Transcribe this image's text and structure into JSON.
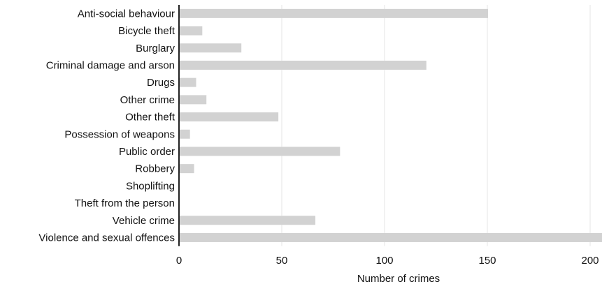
{
  "chart_data": {
    "type": "bar",
    "orientation": "horizontal",
    "categories": [
      "Anti-social behaviour",
      "Bicycle theft",
      "Burglary",
      "Criminal damage and arson",
      "Drugs",
      "Other crime",
      "Other theft",
      "Possession of weapons",
      "Public order",
      "Robbery",
      "Shoplifting",
      "Theft from the person",
      "Vehicle crime",
      "Violence and sexual offences"
    ],
    "values": [
      150,
      11,
      30,
      120,
      8,
      13,
      48,
      5,
      78,
      7,
      0,
      0,
      66,
      210
    ],
    "xlabel": "Number of crimes",
    "ylabel": "",
    "xlim": [
      0,
      200
    ],
    "xticks": [
      0,
      50,
      100,
      150,
      200
    ],
    "grid": true,
    "legend": "none",
    "bar_color": "#d2d2d2"
  }
}
